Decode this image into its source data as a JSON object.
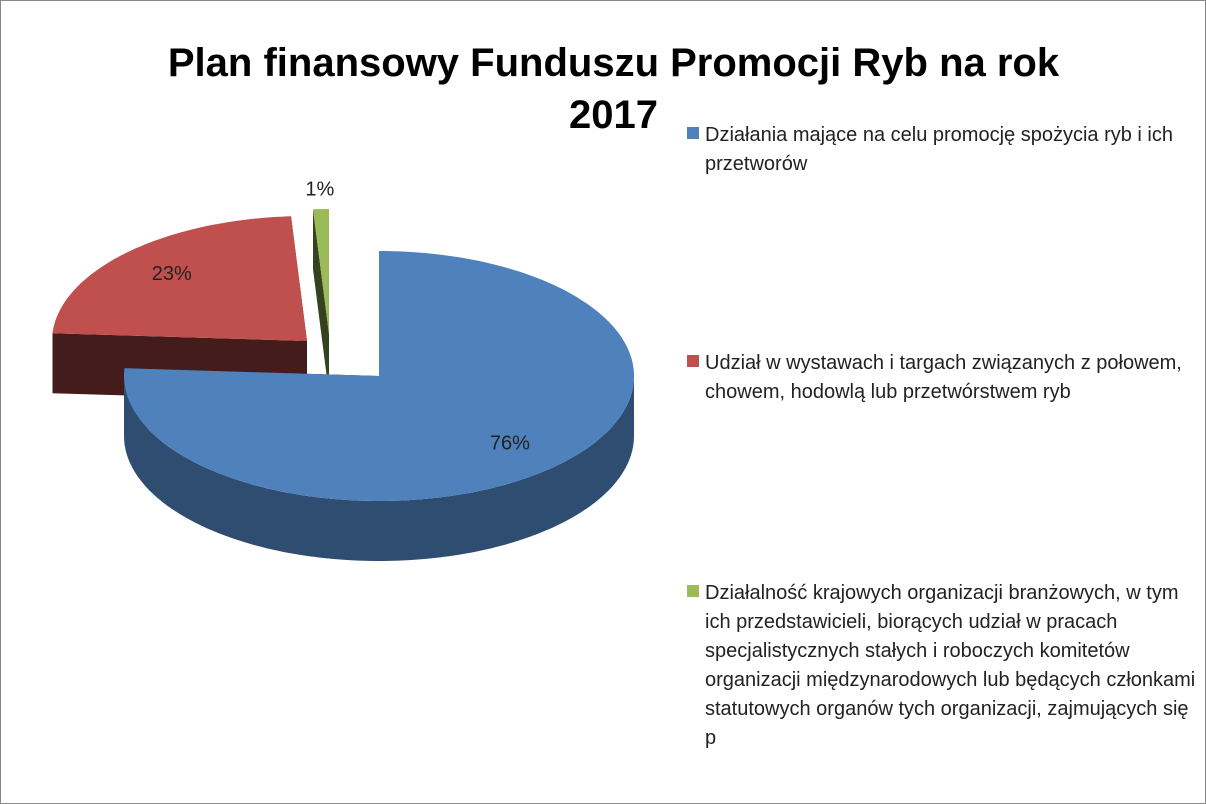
{
  "chart_data": {
    "type": "pie3d",
    "title": "Plan finansowy Funduszu Promocji Ryb na rok 2017",
    "categories": [
      "Działania mające na celu promocję spożycia ryb i ich przetworów",
      "Udział w wystawach i targach związanych z połowem, chowem, hodowlą lub przetwórstwem ryb",
      "Działalność krajowych organizacji branżowych, w tym ich przedstawicieli, biorących udział w pracach specjalistycznych stałych i roboczych komitetów organizacji międzynarodowych lub będących członkami statutowych organów tych organizacji, zajmujących się p"
    ],
    "values": [
      76,
      23,
      1
    ],
    "value_labels": [
      "76%",
      "23%",
      "1%"
    ],
    "colors": [
      "#4f81bd",
      "#c0504d",
      "#9bbb59"
    ],
    "legend": "right"
  }
}
